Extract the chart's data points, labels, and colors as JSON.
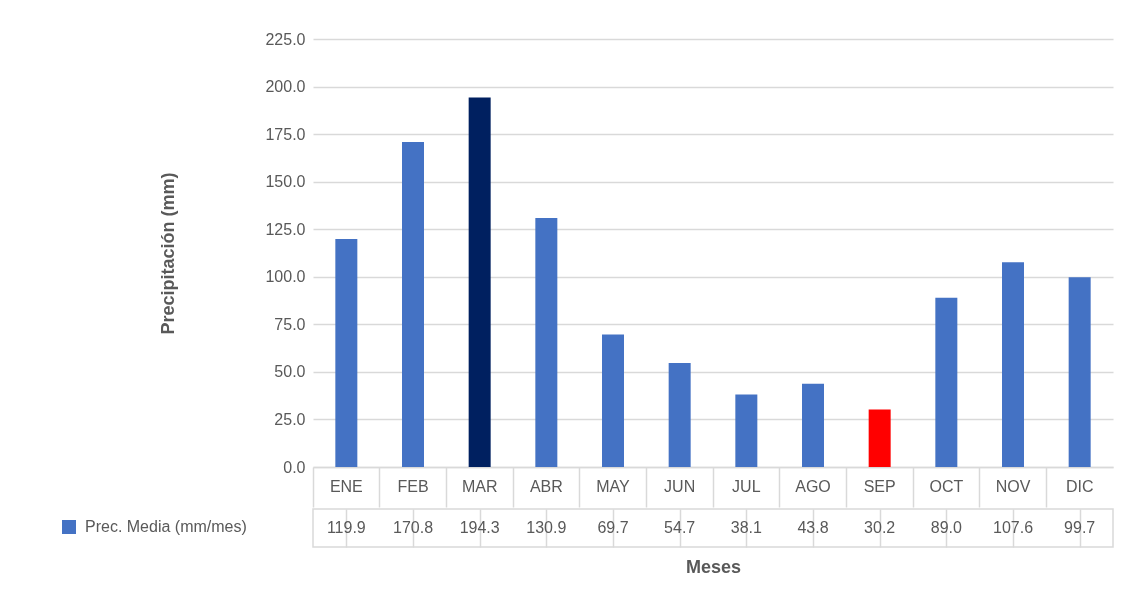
{
  "chart_data": {
    "type": "bar",
    "xlabel": "Meses",
    "ylabel": "Precipitación (mm)",
    "categories": [
      "ENE",
      "FEB",
      "MAR",
      "ABR",
      "MAY",
      "JUN",
      "JUL",
      "AGO",
      "SEP",
      "OCT",
      "NOV",
      "DIC"
    ],
    "series": [
      {
        "name": "Prec. Media (mm/mes)",
        "color": "#4472c4",
        "colors": [
          "#4472c4",
          "#4472c4",
          "#002060",
          "#4472c4",
          "#4472c4",
          "#4472c4",
          "#4472c4",
          "#4472c4",
          "#ff0000",
          "#4472c4",
          "#4472c4",
          "#4472c4"
        ],
        "values": [
          119.9,
          170.8,
          194.3,
          130.9,
          69.7,
          54.7,
          38.1,
          43.8,
          30.2,
          89.0,
          107.6,
          99.7
        ],
        "value_labels": [
          "119.9",
          "170.8",
          "194.3",
          "130.9",
          "69.7",
          "54.7",
          "38.1",
          "43.8",
          "30.2",
          "89.0",
          "107.6",
          "99.7"
        ]
      }
    ],
    "ylim": [
      0,
      225
    ],
    "yticks": [
      {
        "value": 0,
        "label": "0.0"
      },
      {
        "value": 25,
        "label": "25.0"
      },
      {
        "value": 50,
        "label": "50.0"
      },
      {
        "value": 75,
        "label": "75.0"
      },
      {
        "value": 100,
        "label": "100.0"
      },
      {
        "value": 125,
        "label": "125.0"
      },
      {
        "value": 150,
        "label": "150.0"
      },
      {
        "value": 175,
        "label": "175.0"
      },
      {
        "value": 200,
        "label": "200.0"
      },
      {
        "value": 225,
        "label": "225.0"
      }
    ],
    "grid": "y",
    "legend": "bottom left"
  }
}
